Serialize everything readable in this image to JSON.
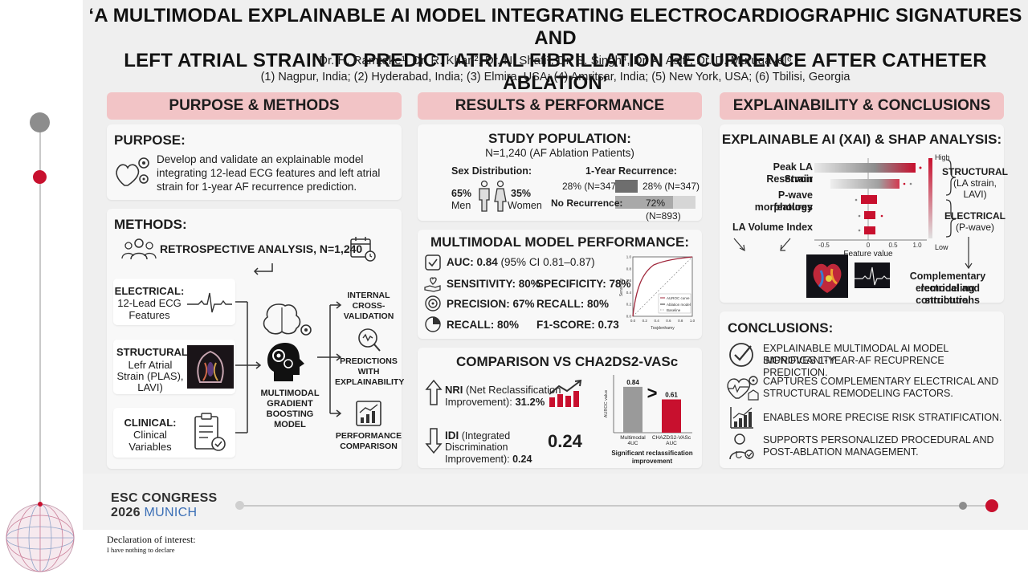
{
  "poster": {
    "title_line1": "‘A MULTIMODAL EXPLAINABLE AI MODEL INTEGRATING ELECTROCARDIOGRAPHIC SIGNATURES AND",
    "title_line2": "LEFT ATRIAL STRAIN TO PREDICT ATRIAL FIBRILLATION RECURRENCE AFTER CATHETER ABLATION’",
    "authors": "Dr. H. Ramteke¹, Dr. R. Khan², Dr. N. Shafi³, Dr. S. Singh⁴, Dr. A. Asif², Dr. D. Murugavel⁶",
    "affiliations": "(1) Nagpur, India; (2) Hyderabad, India; (3) Elmira, USA; (4) Amritsar, India; (5) New York, USA; (6) Tbilisi, Georgia"
  },
  "columns": {
    "purpose_methods": "PURPOSE & METHODS",
    "results": "RESULTS & PERFORMANCE",
    "explain": "EXPLAINABILITY & CONCLUSIONS"
  },
  "purpose": {
    "title": "PURPOSE:",
    "line1": "Develop and validate an explainable model",
    "line2": "integrating 12-lead ECG features and left atrial",
    "line3": "strain for 1-year AF recurrence prediction."
  },
  "methods": {
    "title": "METHODS:",
    "retro": "RETROSPECTIVE ANALYSIS, N=1,240",
    "electrical_label": "ELECTRICAL:",
    "electrical_l1": "12-Lead ECG",
    "electrical_l2": "Features",
    "structural_label": "STRUCTURAL:",
    "structural_l1": "Lefr Atrial",
    "structural_l2": "Strain (PLAS),",
    "structural_l3": "LAVI)",
    "clinical_label": "CLINICAL:",
    "clinical_l1": "Clinical",
    "clinical_l2": "Variables",
    "model_l1": "MULTIMODAL",
    "model_l2": "GRADIENT",
    "model_l3": "BOOSTING",
    "model_l4": "MODEL",
    "out1_l1": "INTERNAL",
    "out1_l2": "CROSS-",
    "out1_l3": "VALIDATION",
    "out2_l1": "PREDICTIONS",
    "out2_l2": "WITH",
    "out2_l3": "EXPLAINABILITY",
    "out3_l1": "PERFORMANCE",
    "out3_l2": "COMPARISON"
  },
  "study": {
    "title": "STUDY POPULATION:",
    "n": "N=1,240 (AF Ablation Patients)",
    "sex_title": "Sex Distribution:",
    "men_pct": "65%",
    "men": "Men",
    "women_pct": "35%",
    "women": "Women",
    "rec_title": "1-Year Recurrence:",
    "rec_left": "28% (N=347)",
    "rec_bar": "28% (N=347)",
    "norec_left": "No Recurrence:",
    "norec_bar": "72% (N=893)",
    "rec_fraction": 0.28,
    "norec_fraction": 0.72
  },
  "performance": {
    "title": "MULTIMODAL MODEL PERFORMANCE:",
    "auc": "AUC: 0.84",
    "auc_ci": "(95% CI 0.81–0.87)",
    "sensitivity": "SENSITIVITY: 80%",
    "specificity": "SPECIFICITY: 78%",
    "precision": "PRECISION: 67%",
    "recall_a": "RECALL: 80%",
    "recall_b": "RECALL: 80%",
    "f1": "F1-SCORE: 0.73"
  },
  "roc": {
    "legend1": "AUROC curve",
    "legend2": "Ablation model",
    "legend3": "Baseline",
    "xlabel": "Tosjdenhamy",
    "ylabel": "Sensitivity",
    "xticks": [
      "0.0",
      "0.2",
      "0.4",
      "0.6",
      "0.8",
      "1.0"
    ],
    "yticks": [
      "0.0",
      "0.2",
      "0.4",
      "0.6",
      "0.8",
      "1.0"
    ]
  },
  "comparison": {
    "title": "COMPARISON VS CHA2DS2-VASc",
    "nri_abbr": "NRI",
    "nri_desc": "(Net Reclassification",
    "nri_l2": "Improvement):",
    "nri_value": "31.2%",
    "idi_abbr": "IDI",
    "idi_desc": "(Integrated",
    "idi_l2": "Discrimination",
    "idi_l3": "Improvement):",
    "idi_value": "0.24",
    "big_value": "0.24",
    "caption_l1": "Significant reclassification",
    "caption_l2": "improvement",
    "gt": ">",
    "ylabel": "AUROC value"
  },
  "chart_data": {
    "type": "bar",
    "categories": [
      "Multimodal 4UC",
      "CHAZDS2-VASc AUC"
    ],
    "values": [
      0.84,
      0.61
    ],
    "labels": [
      "0.84",
      "0.61"
    ],
    "ylabel": "AUROC value",
    "ylim": [
      0,
      1
    ],
    "colors": [
      "#9a9a9a",
      "#c8102e"
    ]
  },
  "shap": {
    "title": "EXPLAINABLE AI (XAI) & SHAP ANALYSIS:",
    "feat1_l1": "Peak LA Reservoir",
    "feat1_l2": "Strain",
    "feat2_l1": "P-wave morphology",
    "feat2_l2": "features",
    "feat3": "LA Volume Index",
    "high": "High",
    "low": "Low",
    "xticks": [
      "-0.5",
      "0",
      "0.5",
      "1.0"
    ],
    "xlabel": "Feature value",
    "structural": "STRUCTURAL",
    "structural_sub": "(LA strain, LAVI)",
    "electrical": "ELECTRICAL",
    "electrical_sub": "(P-wave)",
    "contrib_l1": "Complementary electrical and structural",
    "contrib_l2": "remodeling contributions"
  },
  "conclusions": {
    "title": "CONCLUSIONS:",
    "c1_l1": "EXPLAINABLE MULTIMODAL AI MODEL SIGNIFICANITY",
    "c1_l2": "IMPROVES 1-YEAR-AF RECUPRENCE PREDICTION.",
    "c2_l1": "CAPTURES COMPLEMENTARY ELECTRICAL AND",
    "c2_l2": "STRUCTURAL REMODELING FACTORS.",
    "c3": "ENABLES MORE PRECISE RISK STRATIFICATION.",
    "c4_l1": "SUPPORTS PERSONALIZED PROCEDURAL AND",
    "c4_l2": "POST-ABLATION MANAGEMENT."
  },
  "footer": {
    "esc_l1": "ESC CONGRESS",
    "esc_year": "2026",
    "esc_city": "MUNICH"
  },
  "declaration": {
    "title": "Declaration of interest:",
    "text": "I have nothing to declare"
  },
  "colors": {
    "accent_red": "#c8102e",
    "header_pink": "#f2c4c6",
    "panel_grey": "#efefef"
  }
}
